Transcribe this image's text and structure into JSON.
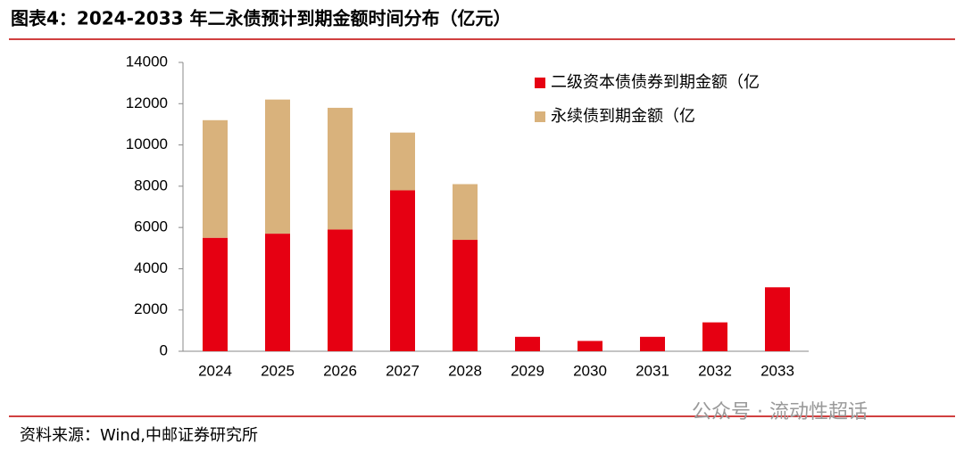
{
  "header": {
    "title": "图表4：2024-2033 年二永债预计到期金额时间分布（亿元）"
  },
  "chart_data": {
    "type": "stacked_bar",
    "categories": [
      "2024",
      "2025",
      "2026",
      "2027",
      "2028",
      "2029",
      "2030",
      "2031",
      "2032",
      "2033"
    ],
    "series": [
      {
        "name": "二级资本债债券到期金额（亿",
        "color": "#e60012",
        "values": [
          5500,
          5700,
          5900,
          7800,
          5400,
          700,
          500,
          700,
          1400,
          3100
        ]
      },
      {
        "name": "永续债到期金额（亿",
        "color": "#d9b27c",
        "values": [
          5700,
          6500,
          5900,
          2800,
          2700,
          0,
          0,
          0,
          0,
          0
        ]
      }
    ],
    "ylim": [
      0,
      14000
    ],
    "yticks": [
      0,
      2000,
      4000,
      6000,
      8000,
      10000,
      12000,
      14000
    ],
    "legend": "upper right"
  },
  "footer": {
    "source": "资料来源：Wind,中邮证券研究所",
    "watermark": "公众号 · 流动性超话"
  }
}
